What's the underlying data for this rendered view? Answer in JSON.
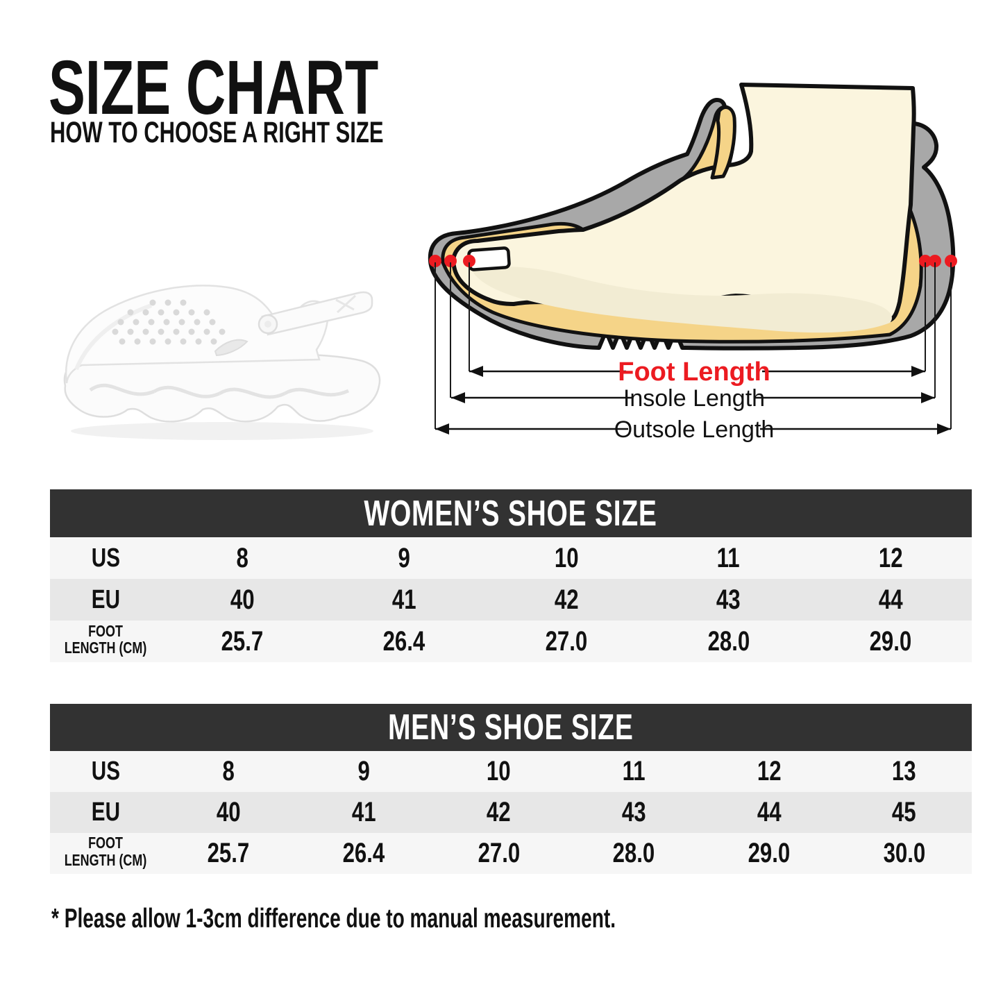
{
  "header": {
    "title": "SIZE CHART",
    "subtitle": "HOW TO CHOOSE A RIGHT SIZE"
  },
  "diagram": {
    "foot_length": "Foot Length",
    "insole_length": "Insole Length",
    "outsole_length": "Outsole Length",
    "colors": {
      "accent_red": "#ec1b21",
      "shoe_gray": "#a8a8a8",
      "insole_yellow": "#f5d488",
      "skin": "#fbf5de",
      "outline": "#111111"
    }
  },
  "illustration": {
    "name": "white-clog-shoe"
  },
  "tables": [
    {
      "id": "women",
      "title": "WOMEN’S SHOE SIZE",
      "rows": [
        {
          "label_lines": [
            "US"
          ],
          "values": [
            "8",
            "9",
            "10",
            "11",
            "12"
          ]
        },
        {
          "label_lines": [
            "EU"
          ],
          "values": [
            "40",
            "41",
            "42",
            "43",
            "44"
          ]
        },
        {
          "label_lines": [
            "FOOT",
            "LENGTH (CM)"
          ],
          "values": [
            "25.7",
            "26.4",
            "27.0",
            "28.0",
            "29.0"
          ]
        }
      ]
    },
    {
      "id": "men",
      "title": "MEN’S SHOE SIZE",
      "rows": [
        {
          "label_lines": [
            "US"
          ],
          "values": [
            "8",
            "9",
            "10",
            "11",
            "12",
            "13"
          ]
        },
        {
          "label_lines": [
            "EU"
          ],
          "values": [
            "40",
            "41",
            "42",
            "43",
            "44",
            "45"
          ]
        },
        {
          "label_lines": [
            "FOOT",
            "LENGTH (CM)"
          ],
          "values": [
            "25.7",
            "26.4",
            "27.0",
            "28.0",
            "29.0",
            "30.0"
          ]
        }
      ]
    }
  ],
  "note": "* Please allow 1-3cm difference due to manual measurement.",
  "colors": {
    "table_header_bg": "#323232",
    "row_light": "#f6f6f6",
    "row_dark": "#e7e7e7",
    "text": "#111111",
    "background": "#ffffff"
  }
}
